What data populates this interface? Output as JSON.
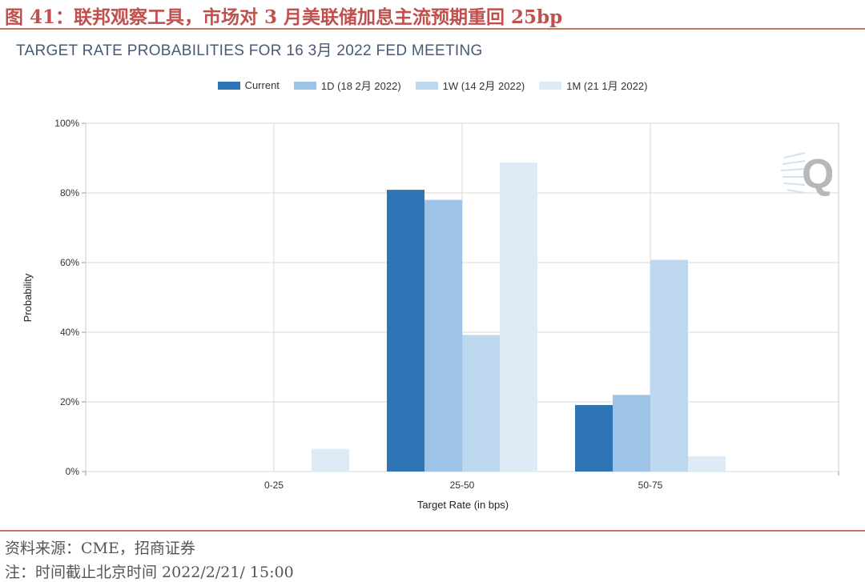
{
  "figure_title": "图 41：联邦观察工具，市场对 3 月美联储加息主流预期重回 25bp",
  "source_text": "资料来源：CME，招商证券",
  "note_text": "注：时间截止北京时间 2022/2/21/ 15:00",
  "watermark_letter": "Q",
  "chart_data": {
    "type": "bar",
    "title": "TARGET RATE PROBABILITIES FOR 16 3月 2022 FED MEETING",
    "xlabel": "Target Rate (in bps)",
    "ylabel": "Probability",
    "categories": [
      "0-25",
      "25-50",
      "50-75"
    ],
    "series": [
      {
        "name": "Current",
        "color": "#2e75b6",
        "values": [
          0,
          80.9,
          19.1
        ]
      },
      {
        "name": "1D (18 2月 2022)",
        "color": "#9dc3e6",
        "values": [
          0,
          78.0,
          22.0
        ]
      },
      {
        "name": "1W (14 2月 2022)",
        "color": "#bdd7ee",
        "values": [
          0,
          39.2,
          60.8
        ]
      },
      {
        "name": "1M (21 1月 2022)",
        "color": "#deebf7",
        "values": [
          6.5,
          88.7,
          4.4
        ]
      }
    ],
    "ylim": [
      0,
      100
    ],
    "yticks": [
      0,
      20,
      40,
      60,
      80,
      100
    ],
    "ytick_labels": [
      "0%",
      "20%",
      "40%",
      "60%",
      "80%",
      "100%"
    ],
    "grid": true,
    "legend_position": "top-center"
  }
}
